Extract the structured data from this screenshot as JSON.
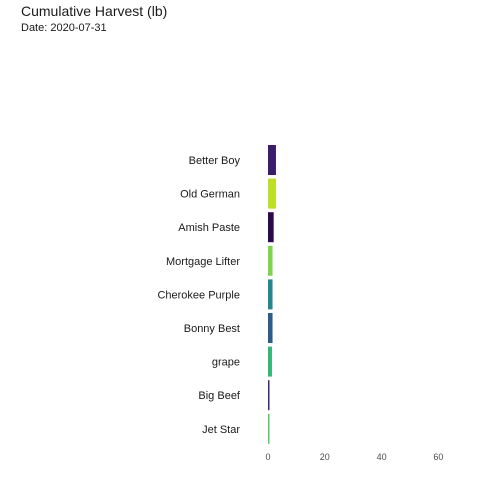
{
  "chart_data": {
    "type": "bar",
    "orientation": "horizontal",
    "title": "Cumulative Harvest (lb)",
    "subtitle": "Date: 2020-07-31",
    "xlabel": "",
    "ylabel": "",
    "xlim": [
      0,
      70
    ],
    "xticks": [
      "0",
      "20",
      "40",
      "60"
    ],
    "grid": false,
    "legend": "none",
    "categories": [
      "Better Boy",
      "Old German",
      "Amish Paste",
      "Mortgage Lifter",
      "Cherokee Purple",
      "Bonny Best",
      "grape",
      "Big Beef",
      "Jet Star"
    ],
    "values": [
      2.8,
      2.8,
      2.0,
      1.6,
      1.6,
      1.6,
      1.4,
      0.5,
      0.5
    ],
    "colors": [
      "#3b1c6b",
      "#bddf26",
      "#2d0a4e",
      "#7ed34f",
      "#25878e",
      "#2b5d8a",
      "#35b779",
      "#3a2a7a",
      "#58c765"
    ]
  }
}
